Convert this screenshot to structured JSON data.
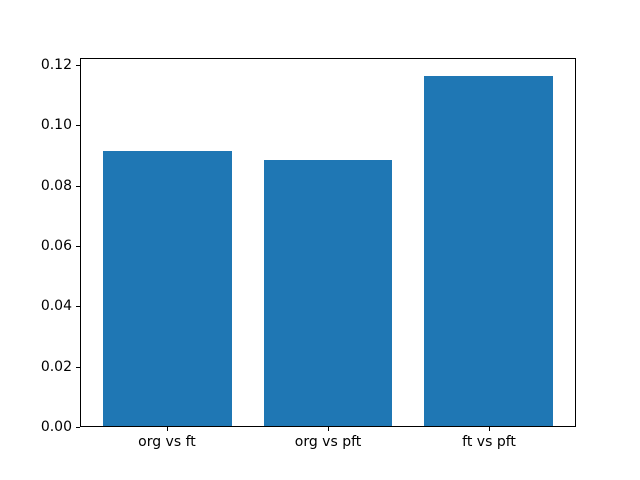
{
  "chart_data": {
    "type": "bar",
    "categories": [
      "org vs ft",
      "org vs pft",
      "ft vs pft"
    ],
    "values": [
      0.0916,
      0.0885,
      0.1165
    ],
    "title": "",
    "xlabel": "",
    "ylabel": "",
    "ylim": [
      0,
      0.1223
    ],
    "xlim": [
      -0.54,
      2.54
    ],
    "yticks": [
      0.0,
      0.02,
      0.04,
      0.06,
      0.08,
      0.1,
      0.12
    ],
    "ytick_labels": [
      "0.00",
      "0.02",
      "0.04",
      "0.06",
      "0.08",
      "0.10",
      "0.12"
    ],
    "bar_width": 0.8,
    "bar_color": "#1f77b4",
    "background_color": "#ffffff",
    "spine_color": "#000000",
    "grid": false,
    "legend": null
  }
}
